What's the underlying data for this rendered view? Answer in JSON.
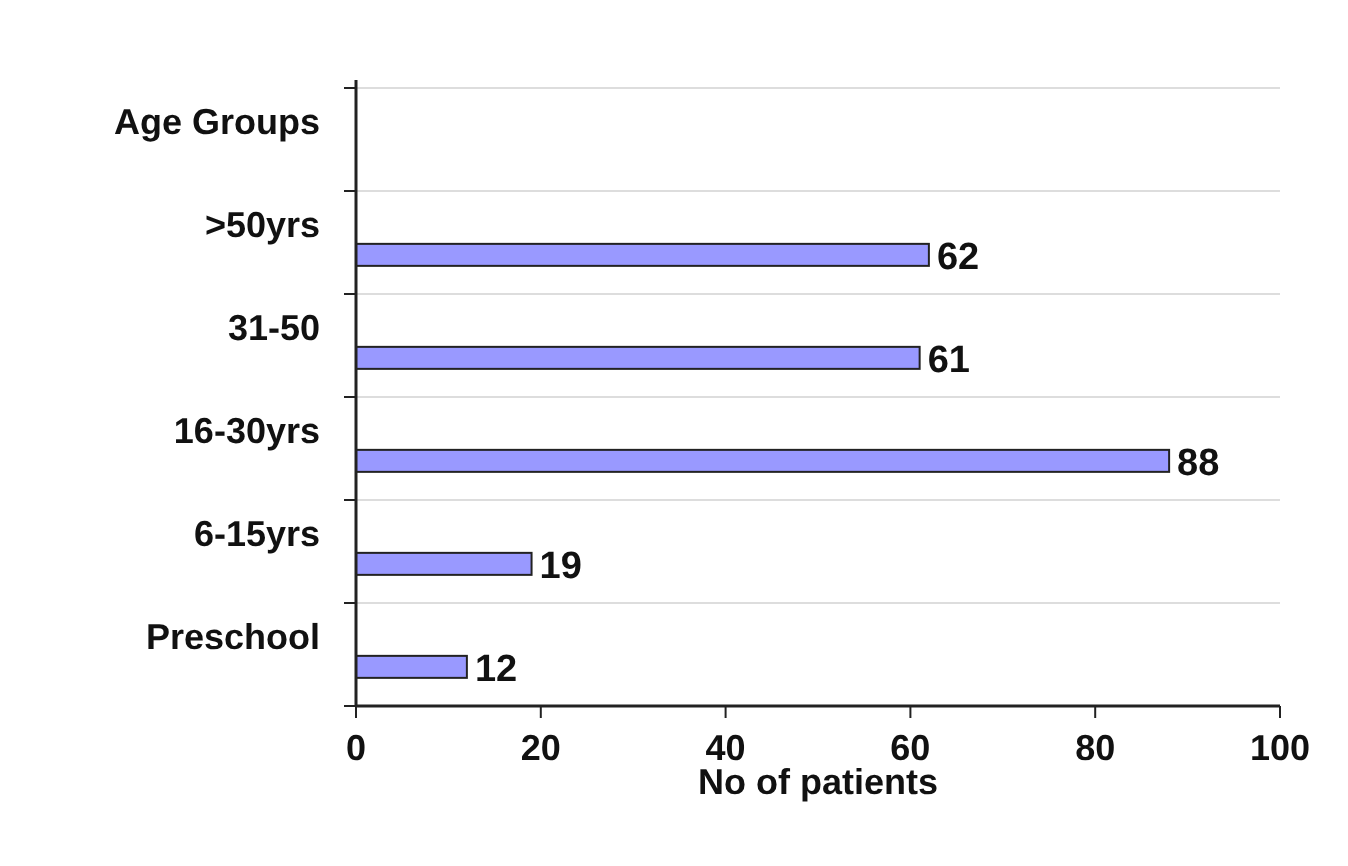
{
  "chart_data": {
    "type": "bar",
    "orientation": "horizontal",
    "xlabel": "No of patients",
    "categories": [
      "Age Groups",
      ">50yrs",
      "31-50",
      "16-30yrs",
      "6-15yrs",
      "Preschool"
    ],
    "values": [
      null,
      62,
      61,
      88,
      19,
      12
    ],
    "color": "#9999ff",
    "data_labels": true,
    "xlim": [
      0,
      100
    ],
    "xticks": [
      0,
      20,
      40,
      60,
      80,
      100
    ],
    "grid": "y"
  }
}
